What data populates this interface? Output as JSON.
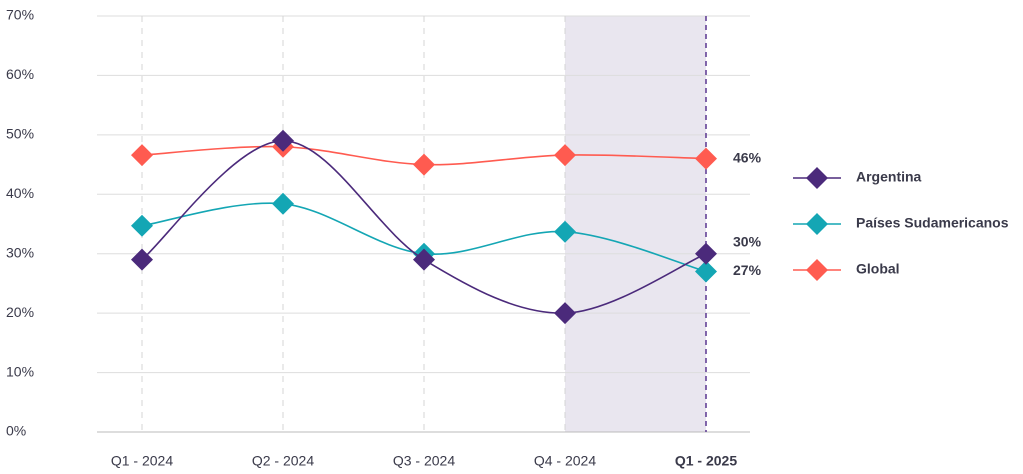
{
  "chart_data": {
    "type": "line",
    "categories": [
      "Q1 - 2024",
      "Q2 - 2024",
      "Q3 - 2024",
      "Q4 - 2024",
      "Q1 - 2025"
    ],
    "series": [
      {
        "name": "Argentina",
        "color": "#4b2a7b",
        "values": [
          29,
          49,
          29,
          20,
          30
        ],
        "value_labels": [
          null,
          null,
          null,
          null,
          "30%"
        ]
      },
      {
        "name": "Países Sudamericanos",
        "color": "#14a6b4",
        "values": [
          34.7,
          38.4,
          30,
          33.7,
          27
        ],
        "value_labels": [
          null,
          null,
          null,
          null,
          "27%"
        ]
      },
      {
        "name": "Global",
        "color": "#ff5b50",
        "values": [
          46.6,
          48,
          45,
          46.6,
          46
        ],
        "value_labels": [
          null,
          null,
          null,
          null,
          "46%"
        ]
      }
    ],
    "ylim": [
      0,
      70
    ],
    "yticks": [
      {
        "value": 0,
        "label": "0%"
      },
      {
        "value": 10,
        "label": "10%"
      },
      {
        "value": 20,
        "label": "20%"
      },
      {
        "value": 30,
        "label": "30%"
      },
      {
        "value": 40,
        "label": "40%"
      },
      {
        "value": 50,
        "label": "50%"
      },
      {
        "value": 60,
        "label": "60%"
      },
      {
        "value": 70,
        "label": "70%"
      }
    ],
    "grid": true,
    "legend": "right"
  }
}
